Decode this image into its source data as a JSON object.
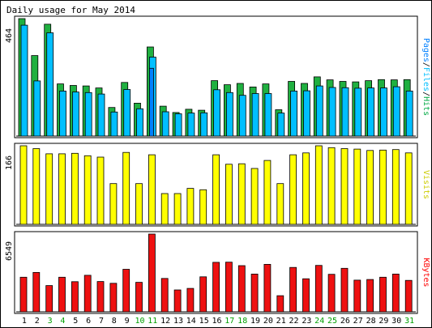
{
  "chart_data": {
    "type": "bar",
    "title": "Daily usage for May 2014",
    "categories": [
      "1",
      "2",
      "3",
      "4",
      "5",
      "6",
      "7",
      "8",
      "9",
      "10",
      "11",
      "12",
      "13",
      "14",
      "15",
      "16",
      "17",
      "18",
      "19",
      "20",
      "21",
      "22",
      "23",
      "24",
      "25",
      "26",
      "27",
      "28",
      "29",
      "30",
      "31"
    ],
    "weekend_days": [
      "3",
      "4",
      "10",
      "11",
      "17",
      "18",
      "24",
      "25",
      "31"
    ],
    "panels": [
      {
        "id": "pages-files-hits",
        "max_label": "464",
        "ymax": 464,
        "legend": [
          {
            "text": "Pages",
            "color": "#0080ff"
          },
          {
            "text": "/",
            "color": "#000000"
          },
          {
            "text": "Files",
            "color": "#00bfff"
          },
          {
            "text": "/",
            "color": "#000000"
          },
          {
            "text": "Hits",
            "color": "#00aa44"
          }
        ],
        "series": [
          {
            "name": "Hits",
            "color": "#20b040",
            "values": [
              464,
              318,
              442,
              206,
              200,
              198,
              190,
              113,
              212,
              130,
              352,
              118,
              93,
              106,
              102,
              219,
              203,
              208,
              194,
              206,
              104,
              216,
              208,
              234,
              222,
              216,
              214,
              219,
              223,
              222,
              223
            ]
          },
          {
            "name": "Files",
            "color": "#00bfff",
            "values": [
              438,
              218,
              408,
              178,
              174,
              172,
              166,
              95,
              184,
              108,
              312,
              96,
              88,
              91,
              92,
              183,
              172,
              161,
              168,
              168,
              91,
              178,
              179,
              198,
              192,
              191,
              189,
              190,
              190,
              195,
              178
            ]
          },
          {
            "name": "Pages",
            "color": "#0080ff",
            "values": [
              0,
              0,
              0,
              0,
              0,
              0,
              0,
              0,
              0,
              0,
              268,
              0,
              0,
              0,
              0,
              0,
              0,
              0,
              0,
              0,
              0,
              0,
              0,
              0,
              0,
              0,
              0,
              0,
              0,
              0,
              0
            ]
          }
        ]
      },
      {
        "id": "visits",
        "max_label": "166",
        "ymax": 166,
        "legend": [
          {
            "text": "Visits",
            "color": "#cccc00"
          }
        ],
        "series": [
          {
            "name": "Visits",
            "color": "#ffff00",
            "values": [
              166,
              160,
              149,
              149,
              150,
              145,
              142,
              86,
              152,
              86,
              147,
              65,
              65,
              76,
              73,
              147,
              127,
              128,
              118,
              135,
              86,
              147,
              151,
              166,
              162,
              160,
              159,
              156,
              157,
              158,
              151
            ]
          }
        ]
      },
      {
        "id": "kbytes",
        "max_label": "6549",
        "ymax": 6549,
        "legend": [
          {
            "text": "KBytes",
            "color": "#ff0000"
          }
        ],
        "series": [
          {
            "name": "KBytes",
            "color": "#ee1111",
            "values": [
              2910,
              3315,
              2210,
              2910,
              2540,
              3080,
              2550,
              2400,
              3580,
              2480,
              6549,
              2810,
              1840,
              1970,
              2950,
              4170,
              4180,
              3890,
              3180,
              4000,
              1360,
              3740,
              2780,
              3910,
              3160,
              3660,
              2670,
              2720,
              2910,
              3180,
              2650
            ]
          }
        ]
      }
    ]
  }
}
